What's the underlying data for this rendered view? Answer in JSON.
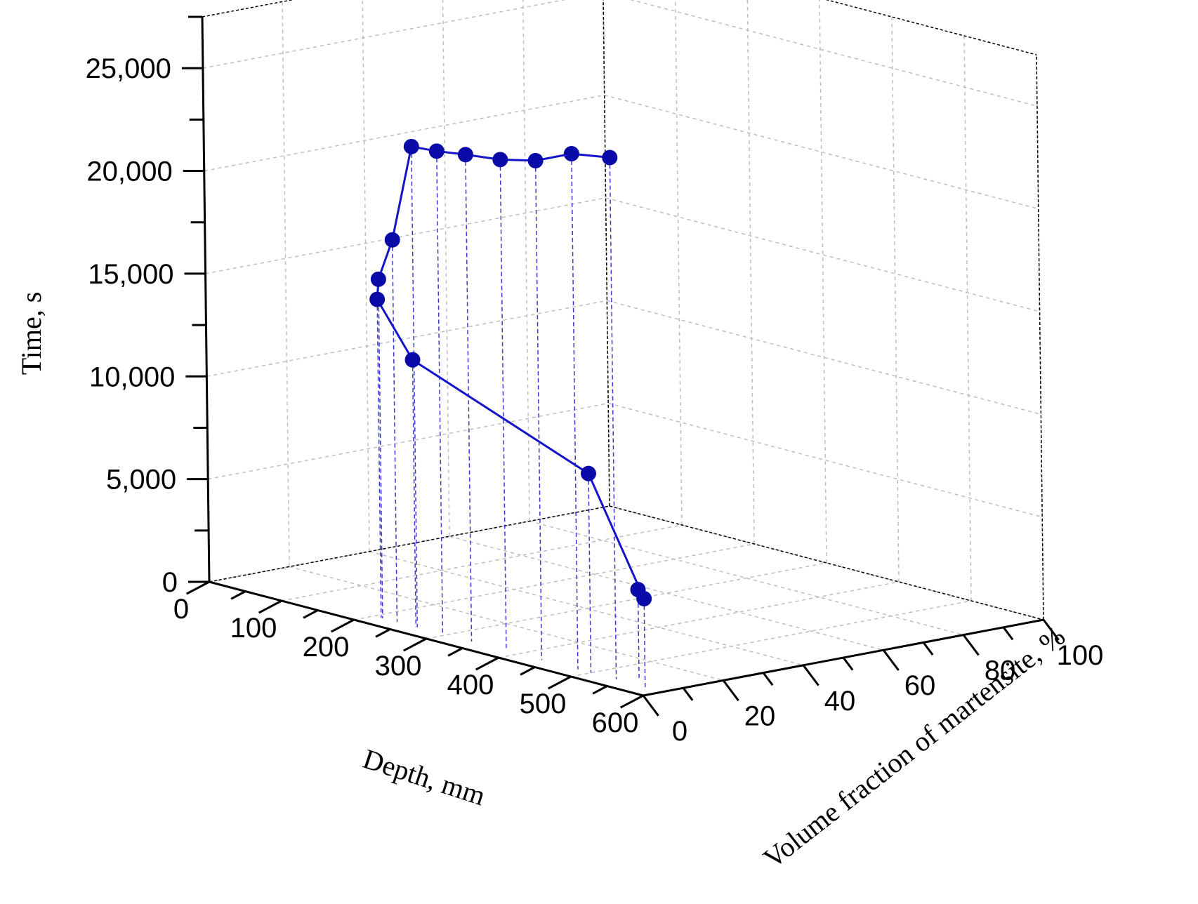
{
  "chart_data": {
    "type": "scatter",
    "projection": "3d",
    "xlabel": "Depth, mm",
    "ylabel": "Volume fraction of martensite, %",
    "zlabel": "Time, s",
    "xlim": [
      0,
      600
    ],
    "ylim": [
      0,
      100
    ],
    "zlim": [
      0,
      27500
    ],
    "x_ticks": [
      "0",
      "100",
      "200",
      "300",
      "400",
      "500",
      "600"
    ],
    "y_ticks": [
      "0",
      "20",
      "40",
      "60",
      "80",
      "100"
    ],
    "z_ticks": [
      "0",
      "5,000",
      "10,000",
      "15,000",
      "20,000",
      "25,000"
    ],
    "grid": true,
    "drop_lines": true,
    "series": [
      {
        "color": "#1414c8",
        "points": [
          {
            "x": 550,
            "y": 8,
            "z": 4400
          },
          {
            "x": 575,
            "y": 5,
            "z": 4300
          },
          {
            "x": 500,
            "y": 5,
            "z": 9700
          },
          {
            "x": 258,
            "y": 5,
            "z": 13000
          },
          {
            "x": 210,
            "y": 5,
            "z": 15500
          },
          {
            "x": 212,
            "y": 5,
            "z": 16500
          },
          {
            "x": 232,
            "y": 5,
            "z": 18600
          },
          {
            "x": 260,
            "y": 5,
            "z": 23400
          },
          {
            "x": 295,
            "y": 5,
            "z": 23500
          },
          {
            "x": 335,
            "y": 5,
            "z": 23700
          },
          {
            "x": 383,
            "y": 5,
            "z": 23900
          },
          {
            "x": 432,
            "y": 5,
            "z": 24300
          },
          {
            "x": 482,
            "y": 5,
            "z": 25100
          },
          {
            "x": 535,
            "y": 5,
            "z": 25400
          }
        ]
      }
    ]
  }
}
